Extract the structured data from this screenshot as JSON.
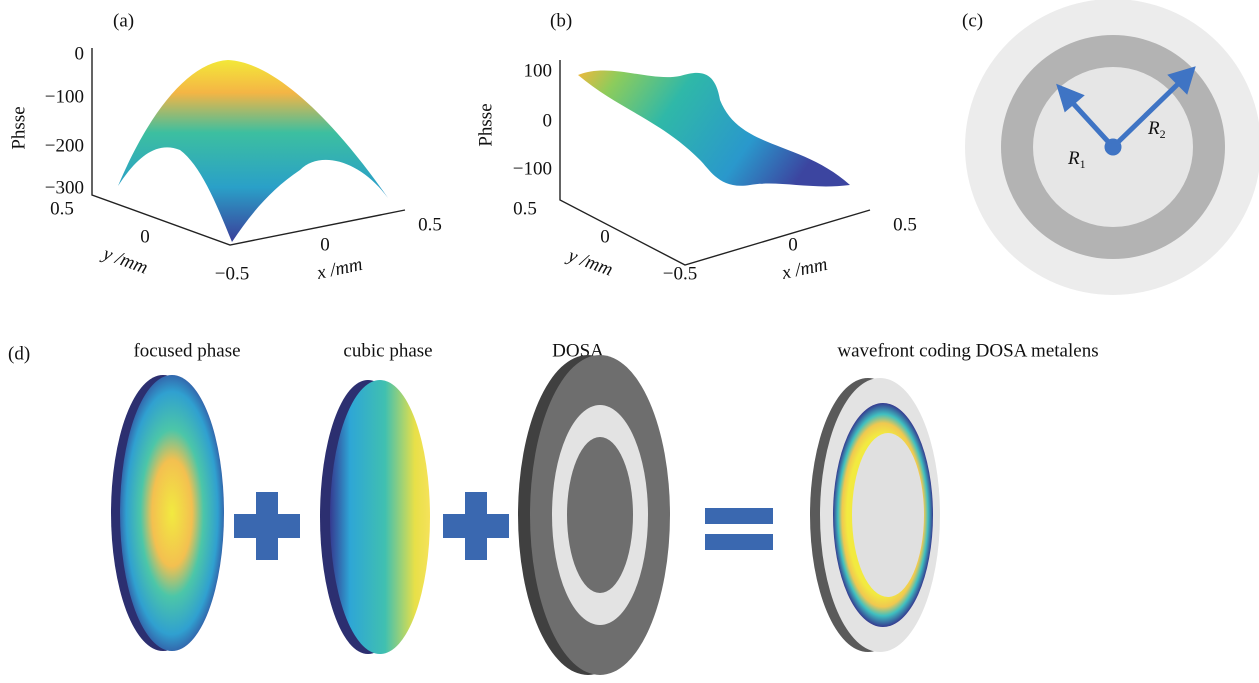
{
  "panels": [
    {
      "label": "(a)",
      "z_label": "Phsse",
      "z_ticks": [
        "0",
        "−100",
        "−200",
        "−300"
      ],
      "y_label": "y /mm",
      "y_ticks": [
        "0.5",
        "0"
      ],
      "x_label": "x /mm",
      "x_ticks": [
        "−0.5",
        "0",
        "0.5"
      ]
    },
    {
      "label": "(b)",
      "z_label": "Phsse",
      "z_ticks": [
        "100",
        "0",
        "−100"
      ],
      "y_label": "y /mm",
      "y_ticks": [
        "0.5",
        "0"
      ],
      "x_label": "x /mm",
      "x_ticks": [
        "−0.5",
        "0",
        "0.5"
      ]
    },
    {
      "label": "(c)",
      "annotations": [
        {
          "symbol": "R",
          "subscript": "1"
        },
        {
          "symbol": "R",
          "subscript": "2"
        }
      ]
    },
    {
      "label": "(d)",
      "items": [
        "focused phase",
        "cubic phase",
        "DOSA",
        "wavefront coding DOSA metalens"
      ]
    }
  ]
}
